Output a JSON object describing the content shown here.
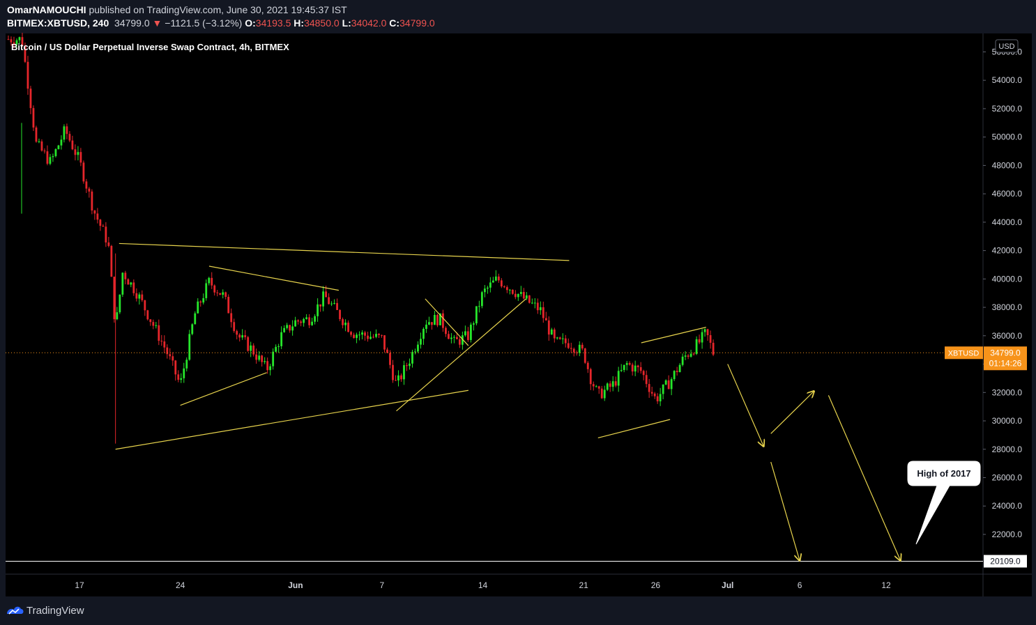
{
  "header": {
    "author": "OmarNAMOUCHI",
    "publish_text": "published on TradingView.com, June 30, 2021 19:45:37 IST",
    "symbol": "BITMEX:XBTUSD, 240",
    "last": "34799.0",
    "change": "−1121.5 (−3.12%)",
    "open_label": "O:",
    "open": "34193.5",
    "high_label": "H:",
    "high": "34850.0",
    "low_label": "L:",
    "low": "34042.0",
    "close_label": "C:",
    "close": "34799.0"
  },
  "footer": {
    "brand": "TradingView"
  },
  "colors": {
    "background": "#000000",
    "up": "#26e62b",
    "down": "#e6262b",
    "drawing": "#e8d44d",
    "price_badge": "#f7931a"
  },
  "chart_data": {
    "type": "candlestick",
    "title": "Bitcoin / US Dollar Perpetual Inverse Swap Contract, 4h, BITMEX",
    "currency": "USD",
    "y_axis": {
      "ylim": [
        19200,
        57300
      ],
      "ticks": [
        "22000.0",
        "24000.0",
        "26000.0",
        "28000.0",
        "30000.0",
        "32000.0",
        "34000.0",
        "36000.0",
        "38000.0",
        "40000.0",
        "42000.0",
        "44000.0",
        "46000.0",
        "48000.0",
        "50000.0",
        "52000.0",
        "54000.0",
        "56000.0"
      ]
    },
    "x_axis": {
      "ticks": [
        "17",
        "24",
        "Jun",
        "7",
        "14",
        "21",
        "26",
        "Jul",
        "6",
        "12"
      ]
    },
    "last_price": {
      "symbol": "XBTUSD",
      "value": 34799.0,
      "countdown": "01:14:26"
    },
    "horizontal_line": {
      "value": 20109.0,
      "label": "20109.0"
    },
    "callout": {
      "text": "High of 2017"
    },
    "path_points": [
      {
        "date": "2021-05-13",
        "price": 56900
      },
      {
        "date": "2021-05-14",
        "price": 49500
      },
      {
        "date": "2021-05-15",
        "price": 48200
      },
      {
        "date": "2021-05-16",
        "price": 50500
      },
      {
        "date": "2021-05-17",
        "price": 48300
      },
      {
        "date": "2021-05-18",
        "price": 44800
      },
      {
        "date": "2021-05-19",
        "price": 42500
      },
      {
        "date": "2021-05-19T12",
        "price": 36500
      },
      {
        "date": "2021-05-20",
        "price": 40500
      },
      {
        "date": "2021-05-21",
        "price": 39000
      },
      {
        "date": "2021-05-22",
        "price": 37000
      },
      {
        "date": "2021-05-23",
        "price": 35000
      },
      {
        "date": "2021-05-24",
        "price": 32500
      },
      {
        "date": "2021-05-25",
        "price": 37500
      },
      {
        "date": "2021-05-26",
        "price": 39800
      },
      {
        "date": "2021-05-27",
        "price": 38800
      },
      {
        "date": "2021-05-28",
        "price": 36000
      },
      {
        "date": "2021-05-29",
        "price": 35000
      },
      {
        "date": "2021-05-30",
        "price": 33600
      },
      {
        "date": "2021-05-31",
        "price": 36000
      },
      {
        "date": "2021-06-01",
        "price": 37000
      },
      {
        "date": "2021-06-02",
        "price": 37200
      },
      {
        "date": "2021-06-03",
        "price": 38800
      },
      {
        "date": "2021-06-04",
        "price": 37500
      },
      {
        "date": "2021-06-05",
        "price": 36200
      },
      {
        "date": "2021-06-06",
        "price": 36000
      },
      {
        "date": "2021-06-07",
        "price": 35800
      },
      {
        "date": "2021-06-08",
        "price": 32500
      },
      {
        "date": "2021-06-09",
        "price": 34500
      },
      {
        "date": "2021-06-10",
        "price": 37000
      },
      {
        "date": "2021-06-11",
        "price": 37200
      },
      {
        "date": "2021-06-12",
        "price": 35500
      },
      {
        "date": "2021-06-13",
        "price": 36000
      },
      {
        "date": "2021-06-14",
        "price": 39000
      },
      {
        "date": "2021-06-15",
        "price": 40000
      },
      {
        "date": "2021-06-16",
        "price": 39300
      },
      {
        "date": "2021-06-17",
        "price": 38500
      },
      {
        "date": "2021-06-18",
        "price": 37800
      },
      {
        "date": "2021-06-19",
        "price": 35500
      },
      {
        "date": "2021-06-20",
        "price": 35500
      },
      {
        "date": "2021-06-21",
        "price": 34800
      },
      {
        "date": "2021-06-21T12",
        "price": 33000
      },
      {
        "date": "2021-06-22",
        "price": 31800
      },
      {
        "date": "2021-06-23",
        "price": 32500
      },
      {
        "date": "2021-06-24",
        "price": 34000
      },
      {
        "date": "2021-06-25",
        "price": 33500
      },
      {
        "date": "2021-06-26",
        "price": 31500
      },
      {
        "date": "2021-06-27",
        "price": 32800
      },
      {
        "date": "2021-06-28",
        "price": 34500
      },
      {
        "date": "2021-06-29",
        "price": 35500
      },
      {
        "date": "2021-06-29T12",
        "price": 36200
      },
      {
        "date": "2021-06-30",
        "price": 34799
      }
    ],
    "trend_lines": [
      {
        "from": {
          "date": "2021-05-19T12",
          "price": 28000
        },
        "to": {
          "date": "2021-06-13",
          "price": 32150
        }
      },
      {
        "from": {
          "date": "2021-05-19T18",
          "price": 42500
        },
        "to": {
          "date": "2021-06-20",
          "price": 41300
        }
      },
      {
        "from": {
          "date": "2021-05-24",
          "price": 31100
        },
        "to": {
          "date": "2021-05-30",
          "price": 33400
        }
      },
      {
        "from": {
          "date": "2021-05-26",
          "price": 40900
        },
        "to": {
          "date": "2021-06-04",
          "price": 39200
        }
      },
      {
        "from": {
          "date": "2021-06-08",
          "price": 30700
        },
        "to": {
          "date": "2021-06-17",
          "price": 38600
        }
      },
      {
        "from": {
          "date": "2021-06-10",
          "price": 38600
        },
        "to": {
          "date": "2021-06-13",
          "price": 35300
        }
      },
      {
        "from": {
          "date": "2021-06-22",
          "price": 28800
        },
        "to": {
          "date": "2021-06-27",
          "price": 30100
        }
      },
      {
        "from": {
          "date": "2021-06-25",
          "price": 35500
        },
        "to": {
          "date": "2021-06-29T12",
          "price": 36600
        }
      }
    ],
    "projection_arrows": [
      {
        "from": {
          "date": "2021-07-01",
          "price": 34000
        },
        "to": {
          "date": "2021-07-03T12",
          "price": 28200
        }
      },
      {
        "from": {
          "date": "2021-07-04",
          "price": 29100
        },
        "to": {
          "date": "2021-07-07",
          "price": 32100
        }
      },
      {
        "from": {
          "date": "2021-07-04",
          "price": 27100
        },
        "to": {
          "date": "2021-07-06",
          "price": 20150
        }
      },
      {
        "from": {
          "date": "2021-07-08",
          "price": 31800
        },
        "to": {
          "date": "2021-07-13",
          "price": 20150
        }
      }
    ]
  }
}
